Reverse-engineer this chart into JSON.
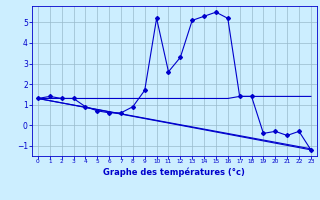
{
  "line1_x": [
    0,
    1,
    2,
    3,
    4,
    5,
    6,
    7,
    8,
    9,
    10,
    11,
    12,
    13,
    14,
    15,
    16,
    17,
    18,
    19,
    20,
    21,
    22,
    23
  ],
  "line1_y": [
    1.3,
    1.4,
    1.3,
    1.3,
    0.9,
    0.7,
    0.6,
    0.6,
    0.9,
    1.7,
    5.2,
    2.6,
    3.3,
    5.1,
    5.3,
    5.5,
    5.2,
    1.4,
    1.4,
    -0.4,
    -0.3,
    -0.5,
    -0.3,
    -1.2
  ],
  "line2_x": [
    0,
    1,
    2,
    3,
    4,
    5,
    6,
    7,
    8,
    9,
    10,
    11,
    12,
    13,
    14,
    15,
    16,
    17,
    18,
    19,
    20,
    21,
    22,
    23
  ],
  "line2_y": [
    1.3,
    1.3,
    1.3,
    1.3,
    1.3,
    1.3,
    1.3,
    1.3,
    1.3,
    1.3,
    1.3,
    1.3,
    1.3,
    1.3,
    1.3,
    1.3,
    1.3,
    1.4,
    1.4,
    1.4,
    1.4,
    1.4,
    1.4,
    1.4
  ],
  "line3_x": [
    0,
    23
  ],
  "line3_y": [
    1.3,
    -1.2
  ],
  "line4_x": [
    0,
    23
  ],
  "line4_y": [
    1.3,
    -1.15
  ],
  "color": "#0000cc",
  "bg_color": "#cceeff",
  "grid_color": "#99bbcc",
  "xlabel": "Graphe des températures (°c)",
  "xlim": [
    -0.5,
    23.5
  ],
  "ylim": [
    -1.5,
    5.8
  ],
  "yticks": [
    -1,
    0,
    1,
    2,
    3,
    4,
    5
  ],
  "xticks": [
    0,
    1,
    2,
    3,
    4,
    5,
    6,
    7,
    8,
    9,
    10,
    11,
    12,
    13,
    14,
    15,
    16,
    17,
    18,
    19,
    20,
    21,
    22,
    23
  ]
}
